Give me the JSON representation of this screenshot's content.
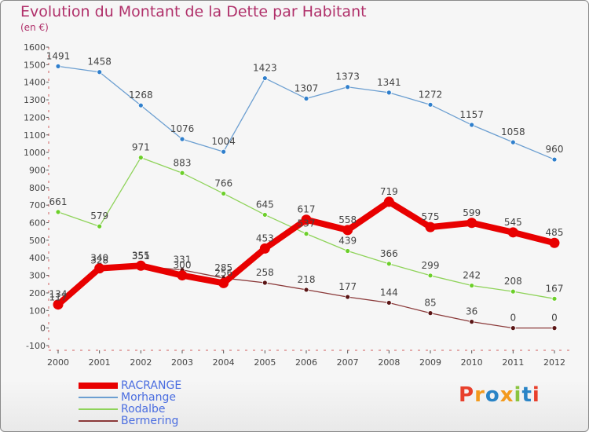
{
  "title": "Evolution du Montant de la Dette par Habitant",
  "subtitle": "(en €)",
  "logo": {
    "text": "Proxiti",
    "colors": [
      "#e8402c",
      "#f39a1e",
      "#2a84c6",
      "#f39a1e",
      "#8ac43f",
      "#2a84c6",
      "#e8402c"
    ]
  },
  "chart_data": {
    "type": "line",
    "title": "Evolution du Montant de la Dette par Habitant",
    "subtitle": "(en €)",
    "x": [
      "2000",
      "2001",
      "2002",
      "2003",
      "2004",
      "2005",
      "2006",
      "2007",
      "2008",
      "2009",
      "2010",
      "2011",
      "2012"
    ],
    "yticks": [
      "-100",
      "0",
      "100",
      "200",
      "300",
      "400",
      "500",
      "600",
      "700",
      "800",
      "900",
      "1000",
      "1100",
      "1200",
      "1300",
      "1400",
      "1500",
      "1600"
    ],
    "ylim": [
      -100,
      1600
    ],
    "grid": false,
    "legend_position": "bottom-left",
    "series": [
      {
        "name": "RACRANGE",
        "color": "#e80000",
        "width": "thick",
        "marker_color": "#e80000",
        "values": [
          134,
          340,
          355,
          300,
          256,
          453,
          617,
          558,
          719,
          575,
          599,
          545,
          485
        ],
        "labels": [
          "134",
          "340",
          "355",
          "300",
          "256",
          "453",
          "617",
          "558",
          "719",
          "575",
          "599",
          "545",
          "485"
        ]
      },
      {
        "name": "Morhange",
        "color": "#6c9fd1",
        "width": "thin",
        "marker_color": "#2f7fcc",
        "values": [
          1491,
          1458,
          1268,
          1076,
          1004,
          1423,
          1307,
          1373,
          1341,
          1272,
          1157,
          1058,
          960
        ],
        "labels": [
          "1491",
          "1458",
          "1268",
          "1076",
          "1004",
          "1423",
          "1307",
          "1373",
          "1341",
          "1272",
          "1157",
          "1058",
          "960"
        ]
      },
      {
        "name": "Rodalbe",
        "color": "#8fd35a",
        "width": "thin",
        "marker_color": "#6ccf2a",
        "values": [
          661,
          579,
          971,
          883,
          766,
          645,
          537,
          439,
          366,
          299,
          242,
          208,
          167
        ],
        "labels": [
          "661",
          "579",
          "971",
          "883",
          "766",
          "645",
          "537",
          "439",
          "366",
          "299",
          "242",
          "208",
          "167"
        ]
      },
      {
        "name": "Bermering",
        "color": "#8b3a3a",
        "width": "thin",
        "marker_color": "#5a1515",
        "values": [
          117,
          328,
          351,
          331,
          285,
          258,
          218,
          177,
          144,
          85,
          36,
          0,
          0
        ],
        "labels": [
          "117",
          "328",
          "351",
          "331",
          "285",
          "258",
          "218",
          "177",
          "144",
          "85",
          "36",
          "0",
          "0"
        ]
      }
    ]
  }
}
